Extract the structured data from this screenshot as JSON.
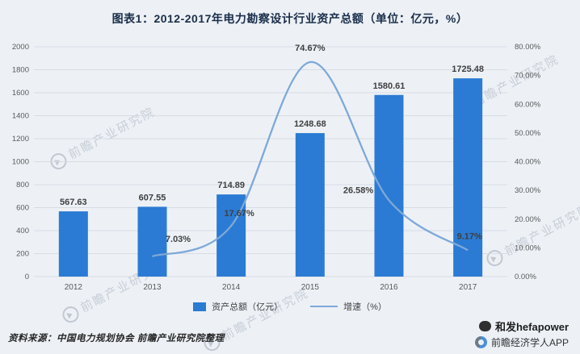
{
  "title": "图表1：2012-2017年电力勘察设计行业资产总额（单位：亿元，%）",
  "chart_data": {
    "type": "bar+line",
    "categories": [
      "2012",
      "2013",
      "2014",
      "2015",
      "2016",
      "2017"
    ],
    "series": [
      {
        "name": "资产总额（亿元）",
        "type": "bar",
        "axis": "left",
        "color": "#2b7bd4",
        "values": [
          567.63,
          607.55,
          714.89,
          1248.68,
          1580.61,
          1725.48
        ]
      },
      {
        "name": "增速（%）",
        "type": "line",
        "axis": "right",
        "color": "#7fa8d8",
        "values": [
          null,
          7.03,
          17.67,
          74.67,
          26.58,
          9.17
        ]
      }
    ],
    "left_axis": {
      "min": 0,
      "max": 2000,
      "step": 200
    },
    "right_axis": {
      "min": 0,
      "max": 80,
      "step": 10,
      "suffix": "%",
      "decimals": 2
    },
    "grid": true,
    "legend_position": "bottom"
  },
  "source": "资料来源：中国电力规划协会 前瞻产业研究院整理",
  "footer": {
    "wechat": "和发hefapower",
    "app": "前瞻经济学人APP"
  },
  "watermark": {
    "text": "前瞻产业研究院"
  }
}
